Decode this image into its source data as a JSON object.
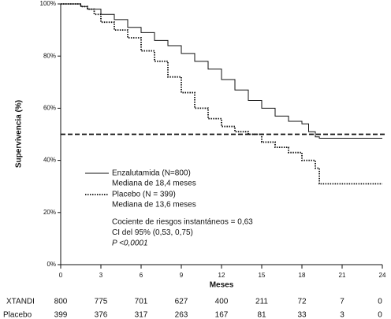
{
  "chart_data": {
    "type": "line",
    "xlabel": "Meses",
    "ylabel": "Supervivencia (%)",
    "xlim": [
      0,
      24
    ],
    "xticks": [
      0,
      3,
      6,
      9,
      12,
      15,
      18,
      21,
      24
    ],
    "ylim": [
      0,
      100
    ],
    "yticks": [
      {
        "value": 0,
        "label": "0%"
      },
      {
        "value": 20,
        "label": "20%"
      },
      {
        "value": 40,
        "label": "40%"
      },
      {
        "value": 60,
        "label": "60%"
      },
      {
        "value": 80,
        "label": "80%"
      },
      {
        "value": 100,
        "label": "100%"
      }
    ],
    "hline": 50,
    "series": [
      {
        "name": "Enzalutamida (N=800)",
        "subtitle": "Mediana de 18,4 meses",
        "color": "#111111",
        "dash": "solid",
        "x": [
          0,
          1,
          1.5,
          2,
          3,
          4,
          5,
          6,
          7,
          8,
          9,
          10,
          11,
          12,
          13,
          14,
          15,
          16,
          17,
          18,
          18.5,
          19,
          19.3,
          24
        ],
        "values": [
          100,
          100,
          99,
          98,
          96,
          94,
          91,
          89,
          86,
          84,
          81,
          78,
          75,
          71,
          67,
          63,
          60,
          57,
          55,
          54,
          51,
          49,
          48.5,
          48.5
        ]
      },
      {
        "name": "Placebo (N = 399)",
        "subtitle": "Mediana de 13,6 meses",
        "color": "#111111",
        "dash": "dotted",
        "x": [
          0,
          1.5,
          2,
          2.5,
          3,
          4,
          5,
          6,
          7,
          8,
          9,
          10,
          11,
          12,
          13,
          14,
          15,
          16,
          17,
          18,
          19,
          19.3,
          24
        ],
        "values": [
          100,
          99,
          98,
          96,
          93,
          90,
          87,
          82,
          78,
          72,
          66,
          60,
          56,
          53,
          51,
          50,
          47,
          45,
          43,
          40,
          37,
          31,
          31
        ]
      }
    ],
    "annotations": [
      "Cociente de riesgos instantáneos = 0,63",
      "CI del 95% (0,53, 0,75)",
      "P <0,0001"
    ],
    "at_risk": [
      {
        "label": "XTANDI",
        "values": [
          "800",
          "775",
          "701",
          "627",
          "400",
          "211",
          "72",
          "7",
          "0"
        ]
      },
      {
        "label": "Placebo",
        "values": [
          "399",
          "376",
          "317",
          "263",
          "167",
          "81",
          "33",
          "3",
          "0"
        ]
      }
    ]
  }
}
